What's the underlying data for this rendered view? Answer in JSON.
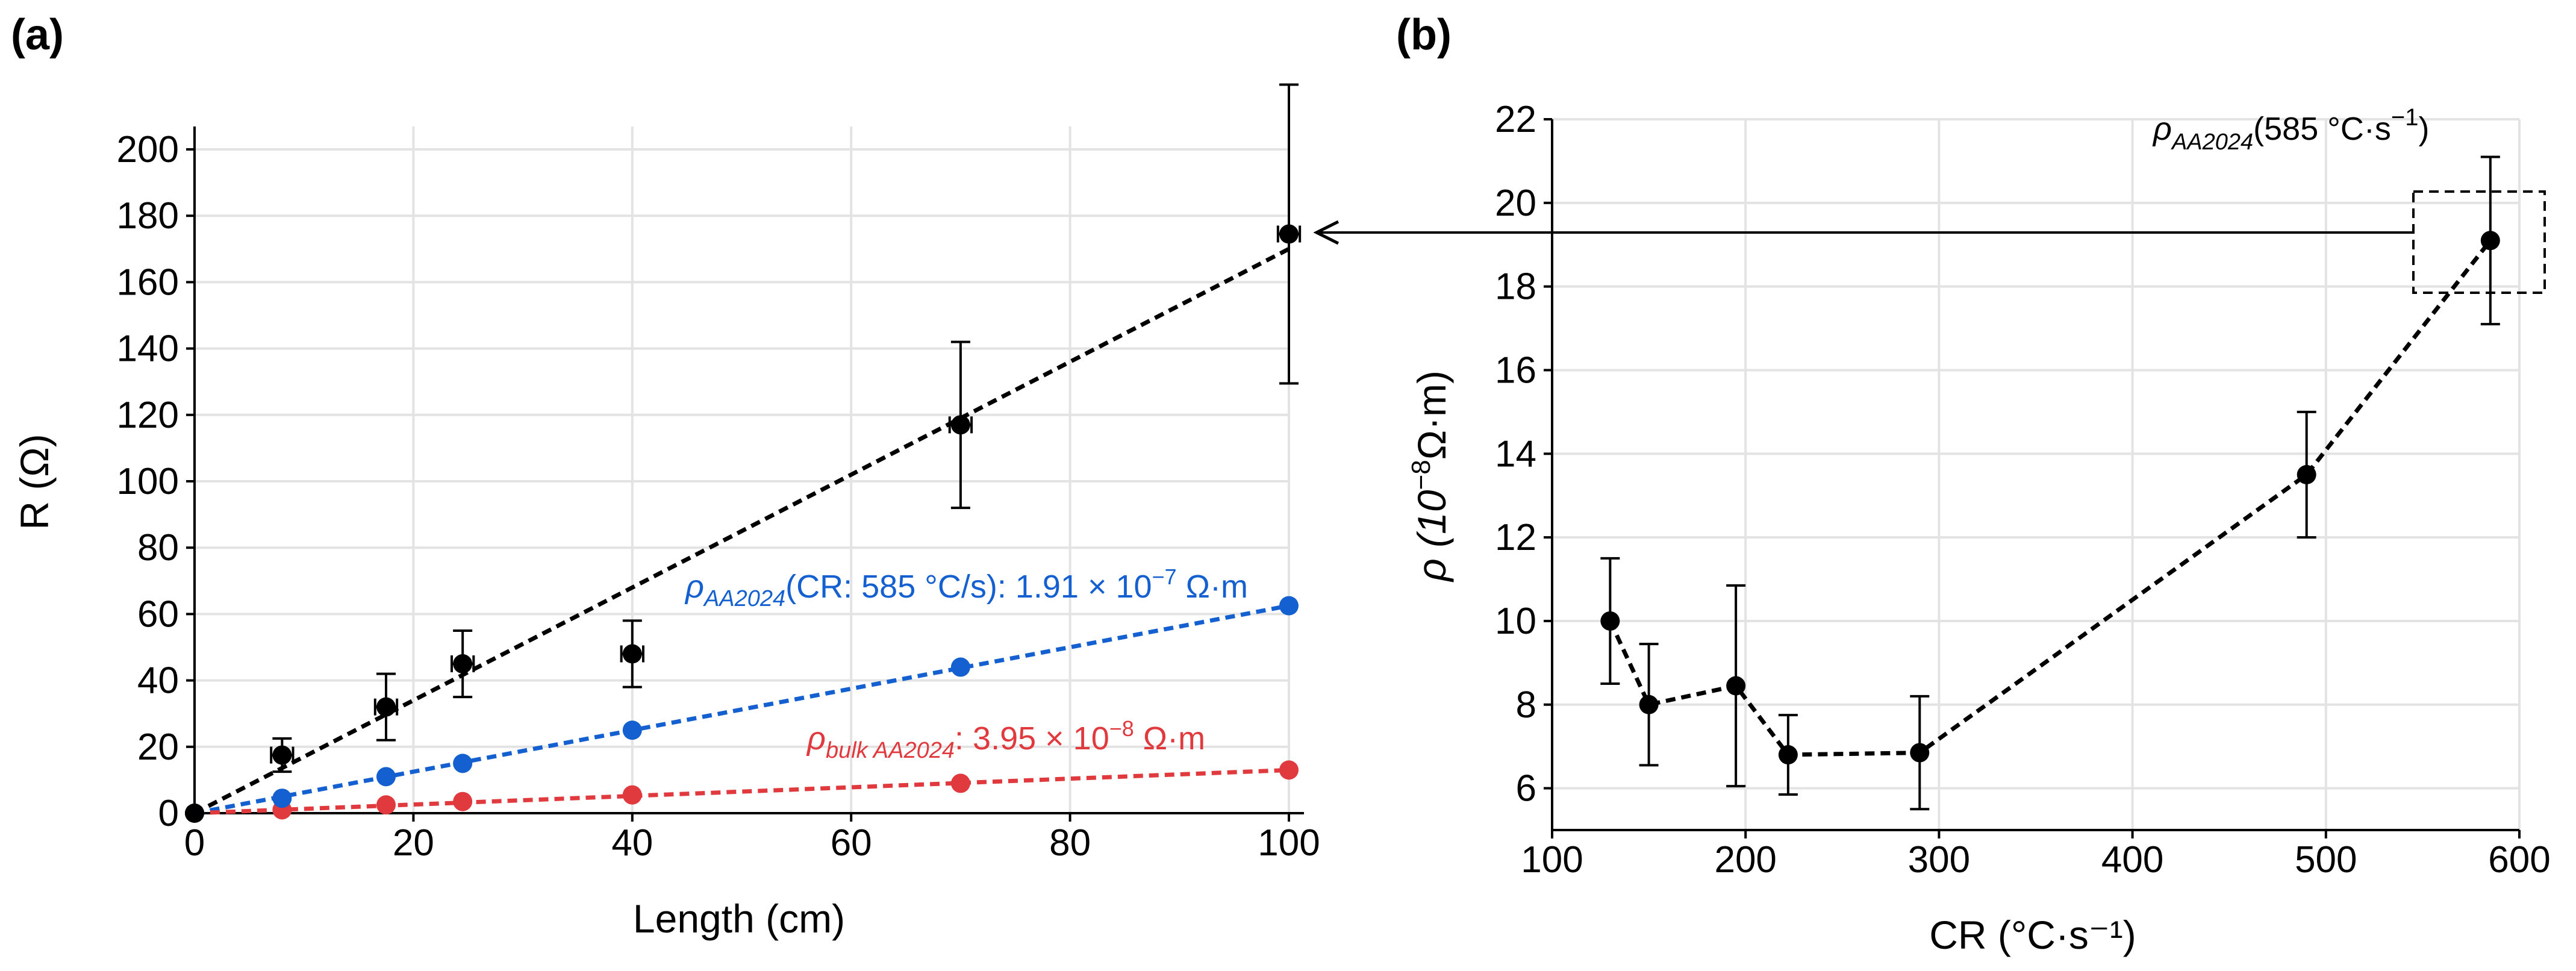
{
  "colors": {
    "black_series": "#000000",
    "blue_series": "#1560d0",
    "red_series": "#e03a3e",
    "grid": "#e3e3e3"
  },
  "panels": [
    {
      "panel_label": "(a)",
      "xlabel": "Length (cm)",
      "ylabel": "R (Ω)"
    },
    {
      "panel_label": "(b)",
      "xlabel": "CR (°C·s⁻¹)",
      "ylabel_prefix": "ρ (10",
      "ylabel_sup": "−8",
      "ylabel_suffix": "Ω·m)"
    }
  ],
  "annotations": {
    "blue_rho": "ρ",
    "blue_sub": "AA2024",
    "blue_text": "(CR: 585 °C/s): 1.91 × 10",
    "blue_sup": "−7",
    "blue_tail": " Ω·m",
    "red_rho": "ρ",
    "red_sub": "bulk AA2024",
    "red_text": ": 3.95 × 10",
    "red_sup": "−8",
    "red_tail": " Ω·m",
    "b_rho": "ρ",
    "b_sub": "AA2024",
    "b_text": "(585 °C·s",
    "b_sup": "−1",
    "b_tail": ")"
  },
  "chart_data": [
    {
      "type": "scatter",
      "panel": "a",
      "xlabel": "Length (cm)",
      "ylabel": "R (Ω)",
      "xlim": [
        0,
        100
      ],
      "ylim": [
        0,
        200
      ],
      "xticks": [
        0,
        20,
        40,
        60,
        80,
        100
      ],
      "yticks": [
        0,
        20,
        40,
        60,
        80,
        100,
        120,
        140,
        160,
        180,
        200
      ],
      "grid": true,
      "series": [
        {
          "key": "measured",
          "color": "#000000",
          "x": [
            0,
            8,
            17.5,
            24.5,
            40,
            70,
            100
          ],
          "y": [
            0,
            17.5,
            32,
            45,
            48,
            117,
            174.5
          ],
          "yerr": [
            0,
            5,
            10,
            10,
            10,
            25,
            45
          ],
          "xerr": [
            0,
            1,
            1,
            1,
            1,
            1,
            1
          ],
          "fit": [
            [
              0,
              0
            ],
            [
              100,
              170
            ]
          ]
        },
        {
          "key": "rho_AA2024",
          "color": "#1560d0",
          "x": [
            0,
            8,
            17.5,
            24.5,
            40,
            70,
            100
          ],
          "y": [
            0,
            4.5,
            11,
            15,
            25,
            44,
            62.5
          ],
          "fit": [
            [
              0,
              0
            ],
            [
              100,
              62.5
            ]
          ]
        },
        {
          "key": "rho_bulk",
          "color": "#e03a3e",
          "x": [
            0,
            8,
            17.5,
            24.5,
            40,
            70,
            100
          ],
          "y": [
            0,
            1,
            2.5,
            3.5,
            5.5,
            9,
            13
          ],
          "fit": [
            [
              0,
              0
            ],
            [
              100,
              13
            ]
          ]
        }
      ]
    },
    {
      "type": "line",
      "panel": "b",
      "xlabel": "CR (°C·s⁻¹)",
      "ylabel": "ρ (10⁻⁸ Ω·m)",
      "xlim": [
        100,
        600
      ],
      "ylim": [
        5,
        22
      ],
      "xticks": [
        100,
        200,
        300,
        400,
        500,
        600
      ],
      "yticks": [
        6,
        8,
        10,
        12,
        14,
        16,
        18,
        20,
        22
      ],
      "grid": true,
      "series": [
        {
          "key": "rho_vs_cr",
          "color": "#000000",
          "x": [
            130,
            150,
            195,
            222,
            290,
            490,
            585
          ],
          "y": [
            10,
            8,
            8.45,
            6.8,
            6.85,
            13.5,
            19.1
          ],
          "yerr": [
            1.5,
            1.45,
            2.4,
            0.95,
            1.35,
            1.5,
            2
          ]
        }
      ]
    }
  ]
}
